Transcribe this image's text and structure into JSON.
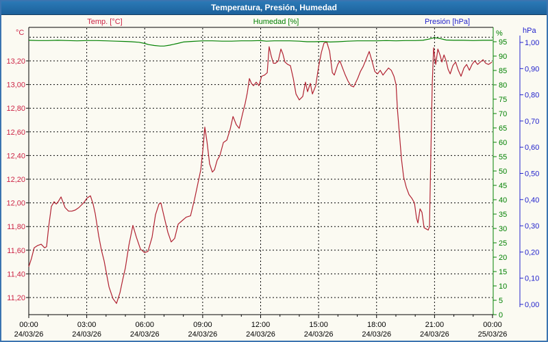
{
  "window": {
    "title": "Temperatura, Presión, Humedad"
  },
  "legend": [
    {
      "label": "Temp. [°C]",
      "color": "#cc2244"
    },
    {
      "label": "Humedad [%]",
      "color": "#008000"
    },
    {
      "label": "Presión [hPa]",
      "color": "#2222cc"
    }
  ],
  "colors": {
    "grid": "#000000",
    "plot_border": "#000000",
    "x_labels": "#000000",
    "background": "#fbfaf2",
    "titlebar": "#1f6aa5",
    "frame_border": "#3b74b0"
  },
  "axes": {
    "temp": {
      "unit": "°C",
      "color": "#cc2244",
      "ticks": [
        {
          "v": 13.2,
          "label": "13,20"
        },
        {
          "v": 13.0,
          "label": "13,00"
        },
        {
          "v": 12.8,
          "label": "12,80"
        },
        {
          "v": 12.6,
          "label": "12,60"
        },
        {
          "v": 12.4,
          "label": "12,40"
        },
        {
          "v": 12.2,
          "label": "12,20"
        },
        {
          "v": 12.0,
          "label": "12,00"
        },
        {
          "v": 11.8,
          "label": "11,80"
        },
        {
          "v": 11.6,
          "label": "11,60"
        },
        {
          "v": 11.4,
          "label": "11,40"
        },
        {
          "v": 11.2,
          "label": "11,20"
        }
      ],
      "grid_extra": [
        13.4
      ]
    },
    "humidity": {
      "unit": "%",
      "color": "#008000",
      "ticks": [
        95,
        90,
        85,
        80,
        75,
        70,
        65,
        60,
        55,
        50,
        45,
        40,
        35,
        30,
        25,
        20,
        15,
        10,
        5,
        0
      ]
    },
    "pressure": {
      "unit": "hPa",
      "color": "#2222cc",
      "ticks": [
        {
          "v": 1.0,
          "label": "1,00"
        },
        {
          "v": 0.9,
          "label": "0,90"
        },
        {
          "v": 0.8,
          "label": "0,80"
        },
        {
          "v": 0.7,
          "label": "0,70"
        },
        {
          "v": 0.6,
          "label": "0,60"
        },
        {
          "v": 0.5,
          "label": "0,50"
        },
        {
          "v": 0.4,
          "label": "0,40"
        },
        {
          "v": 0.3,
          "label": "0,30"
        },
        {
          "v": 0.2,
          "label": "0,20"
        },
        {
          "v": 0.1,
          "label": "0,10"
        },
        {
          "v": 0.0,
          "label": "0,00"
        }
      ]
    },
    "time": {
      "color": "#000000",
      "ticks": [
        {
          "time": "00:00",
          "date": "24/03/26"
        },
        {
          "time": "03:00",
          "date": "24/03/26"
        },
        {
          "time": "06:00",
          "date": "24/03/26"
        },
        {
          "time": "09:00",
          "date": "24/03/26"
        },
        {
          "time": "12:00",
          "date": "24/03/26"
        },
        {
          "time": "15:00",
          "date": "24/03/26"
        },
        {
          "time": "18:00",
          "date": "24/03/26"
        },
        {
          "time": "21:00",
          "date": "24/03/26"
        },
        {
          "time": "00:00",
          "date": "25/03/26"
        }
      ]
    }
  },
  "chart_data": {
    "type": "line",
    "title": "Temperatura, Presión, Humedad",
    "x_axis": {
      "start": "24/03/26 00:00",
      "end": "25/03/26 00:00",
      "tick_interval_hours": 3,
      "minor_tick_hours": 1,
      "unit": "hours"
    },
    "grid": "dashed",
    "legend_position": "top",
    "series": [
      {
        "name": "Temp. [°C]",
        "scale": "temp",
        "color": "#b02030",
        "axis_visible_range": [
          11.05,
          13.48
        ],
        "points": [
          [
            0.0,
            11.46
          ],
          [
            0.14,
            11.53
          ],
          [
            0.28,
            11.62
          ],
          [
            0.46,
            11.64
          ],
          [
            0.64,
            11.65
          ],
          [
            0.82,
            11.62
          ],
          [
            0.92,
            11.63
          ],
          [
            1.03,
            11.8
          ],
          [
            1.17,
            11.97
          ],
          [
            1.31,
            12.01
          ],
          [
            1.42,
            11.99
          ],
          [
            1.52,
            12.01
          ],
          [
            1.67,
            12.05
          ],
          [
            1.88,
            11.96
          ],
          [
            2.06,
            11.93
          ],
          [
            2.23,
            11.93
          ],
          [
            2.41,
            11.94
          ],
          [
            2.59,
            11.96
          ],
          [
            2.84,
            12.0
          ],
          [
            3.01,
            12.04
          ],
          [
            3.19,
            12.06
          ],
          [
            3.33,
            11.99
          ],
          [
            3.44,
            11.91
          ],
          [
            3.62,
            11.72
          ],
          [
            3.76,
            11.6
          ],
          [
            3.9,
            11.51
          ],
          [
            4.15,
            11.29
          ],
          [
            4.36,
            11.19
          ],
          [
            4.54,
            11.15
          ],
          [
            4.72,
            11.24
          ],
          [
            4.86,
            11.35
          ],
          [
            5.0,
            11.45
          ],
          [
            5.18,
            11.64
          ],
          [
            5.39,
            11.81
          ],
          [
            5.57,
            11.71
          ],
          [
            5.78,
            11.61
          ],
          [
            5.99,
            11.58
          ],
          [
            6.17,
            11.59
          ],
          [
            6.38,
            11.71
          ],
          [
            6.56,
            11.9
          ],
          [
            6.74,
            11.99
          ],
          [
            6.84,
            12.0
          ],
          [
            6.98,
            11.9
          ],
          [
            7.2,
            11.75
          ],
          [
            7.37,
            11.67
          ],
          [
            7.55,
            11.7
          ],
          [
            7.73,
            11.82
          ],
          [
            7.94,
            11.85
          ],
          [
            8.15,
            11.88
          ],
          [
            8.37,
            11.89
          ],
          [
            8.58,
            12.03
          ],
          [
            8.76,
            12.17
          ],
          [
            8.9,
            12.28
          ],
          [
            9.01,
            12.45
          ],
          [
            9.11,
            12.64
          ],
          [
            9.22,
            12.52
          ],
          [
            9.36,
            12.33
          ],
          [
            9.5,
            12.26
          ],
          [
            9.61,
            12.28
          ],
          [
            9.75,
            12.36
          ],
          [
            9.89,
            12.4
          ],
          [
            10.07,
            12.51
          ],
          [
            10.25,
            12.53
          ],
          [
            10.42,
            12.62
          ],
          [
            10.57,
            12.73
          ],
          [
            10.74,
            12.66
          ],
          [
            10.89,
            12.63
          ],
          [
            11.06,
            12.75
          ],
          [
            11.2,
            12.84
          ],
          [
            11.31,
            12.93
          ],
          [
            11.42,
            13.05
          ],
          [
            11.52,
            13.01
          ],
          [
            11.63,
            12.99
          ],
          [
            11.77,
            13.02
          ],
          [
            11.91,
            12.99
          ],
          [
            12.05,
            13.07
          ],
          [
            12.2,
            13.08
          ],
          [
            12.34,
            13.1
          ],
          [
            12.44,
            13.32
          ],
          [
            12.55,
            13.24
          ],
          [
            12.66,
            13.18
          ],
          [
            12.77,
            13.18
          ],
          [
            12.91,
            13.2
          ],
          [
            13.05,
            13.3
          ],
          [
            13.15,
            13.26
          ],
          [
            13.26,
            13.19
          ],
          [
            13.4,
            13.17
          ],
          [
            13.54,
            13.16
          ],
          [
            13.69,
            13.05
          ],
          [
            13.83,
            12.92
          ],
          [
            14.0,
            12.87
          ],
          [
            14.18,
            12.9
          ],
          [
            14.32,
            13.02
          ],
          [
            14.43,
            12.94
          ],
          [
            14.57,
            13.01
          ],
          [
            14.68,
            12.92
          ],
          [
            14.85,
            12.99
          ],
          [
            15.0,
            13.15
          ],
          [
            15.14,
            13.27
          ],
          [
            15.28,
            13.35
          ],
          [
            15.42,
            13.36
          ],
          [
            15.57,
            13.28
          ],
          [
            15.71,
            13.1
          ],
          [
            15.81,
            13.08
          ],
          [
            15.99,
            13.17
          ],
          [
            16.1,
            13.2
          ],
          [
            16.24,
            13.14
          ],
          [
            16.38,
            13.08
          ],
          [
            16.52,
            13.03
          ],
          [
            16.67,
            12.99
          ],
          [
            16.81,
            12.98
          ],
          [
            17.02,
            13.05
          ],
          [
            17.16,
            13.11
          ],
          [
            17.3,
            13.15
          ],
          [
            17.45,
            13.21
          ],
          [
            17.62,
            13.28
          ],
          [
            17.76,
            13.2
          ],
          [
            17.91,
            13.11
          ],
          [
            18.05,
            13.09
          ],
          [
            18.19,
            13.12
          ],
          [
            18.33,
            13.08
          ],
          [
            18.47,
            13.11
          ],
          [
            18.62,
            13.14
          ],
          [
            18.76,
            13.12
          ],
          [
            18.9,
            13.07
          ],
          [
            19.01,
            13.0
          ],
          [
            19.08,
            12.79
          ],
          [
            19.18,
            12.59
          ],
          [
            19.29,
            12.37
          ],
          [
            19.4,
            12.22
          ],
          [
            19.54,
            12.13
          ],
          [
            19.68,
            12.07
          ],
          [
            19.82,
            12.04
          ],
          [
            19.96,
            12.0
          ],
          [
            20.07,
            11.87
          ],
          [
            20.14,
            11.83
          ],
          [
            20.25,
            11.95
          ],
          [
            20.35,
            11.92
          ],
          [
            20.46,
            11.79
          ],
          [
            20.57,
            11.78
          ],
          [
            20.67,
            11.77
          ],
          [
            20.74,
            11.8
          ],
          [
            20.81,
            12.42
          ],
          [
            20.88,
            13.0
          ],
          [
            20.95,
            13.31
          ],
          [
            21.06,
            13.17
          ],
          [
            21.17,
            13.3
          ],
          [
            21.28,
            13.25
          ],
          [
            21.38,
            13.19
          ],
          [
            21.49,
            13.25
          ],
          [
            21.6,
            13.2
          ],
          [
            21.7,
            13.13
          ],
          [
            21.81,
            13.09
          ],
          [
            21.95,
            13.16
          ],
          [
            22.09,
            13.19
          ],
          [
            22.23,
            13.12
          ],
          [
            22.37,
            13.07
          ],
          [
            22.52,
            13.14
          ],
          [
            22.66,
            13.17
          ],
          [
            22.8,
            13.12
          ],
          [
            22.94,
            13.17
          ],
          [
            23.08,
            13.2
          ],
          [
            23.23,
            13.17
          ],
          [
            23.37,
            13.19
          ],
          [
            23.51,
            13.21
          ],
          [
            23.65,
            13.18
          ],
          [
            23.79,
            13.17
          ],
          [
            23.97,
            13.19
          ]
        ]
      },
      {
        "name": "Humedad [%]",
        "scale": "humidity",
        "color": "#008000",
        "axis_range": [
          0,
          100
        ],
        "points": [
          [
            0,
            95.5
          ],
          [
            0.5,
            95.4
          ],
          [
            1,
            95.4
          ],
          [
            1.5,
            95.5
          ],
          [
            2,
            95.4
          ],
          [
            2.5,
            95.3
          ],
          [
            3,
            95.4
          ],
          [
            3.5,
            95.4
          ],
          [
            4,
            95.3
          ],
          [
            4.5,
            95.2
          ],
          [
            5,
            95.1
          ],
          [
            5.3,
            95.0
          ],
          [
            5.7,
            94.8
          ],
          [
            6.0,
            94.4
          ],
          [
            6.2,
            94.0
          ],
          [
            6.5,
            93.7
          ],
          [
            6.8,
            93.5
          ],
          [
            7.0,
            93.5
          ],
          [
            7.3,
            93.8
          ],
          [
            7.7,
            94.4
          ],
          [
            8.0,
            94.9
          ],
          [
            8.4,
            95.1
          ],
          [
            9,
            95.3
          ],
          [
            9.5,
            95.3
          ],
          [
            10,
            95.2
          ],
          [
            10.5,
            95.2
          ],
          [
            11,
            95.3
          ],
          [
            11.5,
            95.3
          ],
          [
            12,
            95.4
          ],
          [
            12.3,
            95.2
          ],
          [
            12.7,
            95.3
          ],
          [
            13,
            95.3
          ],
          [
            13.5,
            95.3
          ],
          [
            14,
            95.2
          ],
          [
            14.4,
            95.0
          ],
          [
            14.8,
            95.0
          ],
          [
            15.2,
            95.1
          ],
          [
            15.6,
            94.9
          ],
          [
            16,
            95.0
          ],
          [
            16.5,
            95.2
          ],
          [
            17,
            95.3
          ],
          [
            17.5,
            95.3
          ],
          [
            18,
            95.3
          ],
          [
            18.5,
            95.4
          ],
          [
            19,
            95.3
          ],
          [
            19.5,
            95.4
          ],
          [
            20,
            95.4
          ],
          [
            20.4,
            95.5
          ],
          [
            20.7,
            95.9
          ],
          [
            21.0,
            96.4
          ],
          [
            21.3,
            96.1
          ],
          [
            21.6,
            95.6
          ],
          [
            22,
            95.5
          ],
          [
            22.5,
            95.5
          ],
          [
            23,
            95.4
          ],
          [
            23.5,
            95.5
          ],
          [
            24,
            95.5
          ]
        ]
      },
      {
        "name": "Presión [hPa]",
        "scale": "pressure",
        "color": "#2222cc",
        "axis_range": [
          0.0,
          1.0
        ],
        "points": [],
        "note": "no pressure curve is visible inside the plot area"
      }
    ]
  }
}
